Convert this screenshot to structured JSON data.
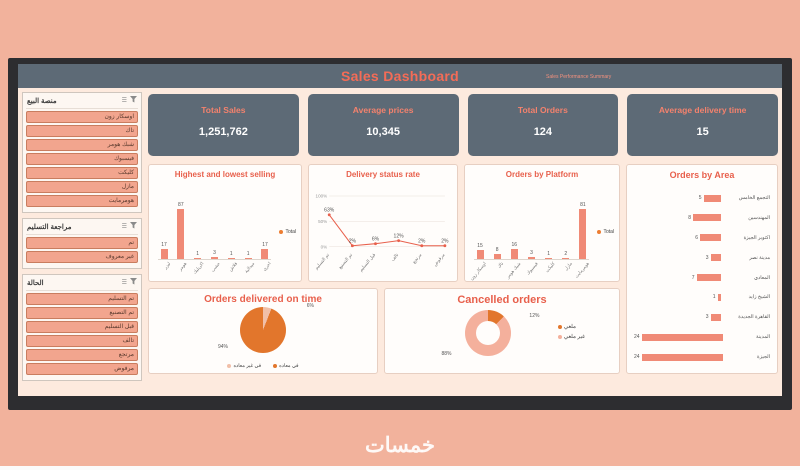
{
  "window": {
    "watermark": "خمسات"
  },
  "header": {
    "title": "Sales Dashboard",
    "subtitle": "Sales Performance Summary"
  },
  "slicers": [
    {
      "title": "منصة البيع",
      "icons": [
        "multi-select-icon",
        "clear-filter-icon"
      ],
      "items": [
        "اوسكار زون",
        "تاك",
        "شبك هومر",
        "فيسبوك",
        "كليكت",
        "مازل",
        "هومرمايت"
      ]
    },
    {
      "title": "مراجعة التسليم",
      "icons": [
        "multi-select-icon",
        "clear-filter-icon"
      ],
      "items": [
        "تم",
        "غير معروف"
      ]
    },
    {
      "title": "الحالة",
      "icons": [
        "multi-select-icon",
        "clear-filter-icon"
      ],
      "items": [
        "تم التسليم",
        "تم التصنيع",
        "قبل التسليم",
        "تالف",
        "مرتجع",
        "مرفوض"
      ]
    }
  ],
  "kpis": [
    {
      "label": "Total Sales",
      "value": "1,251,762"
    },
    {
      "label": "Average prices",
      "value": "10,345"
    },
    {
      "label": "Total Orders",
      "value": "124"
    },
    {
      "label": "Average delivery time",
      "value": "15"
    }
  ],
  "chart_data": [
    {
      "type": "bar",
      "title": "Highest and lowest selling",
      "categories": [
        "ليزر",
        "هومر",
        "اكريليك",
        "خشب",
        "فلاش",
        "ميدالية",
        "اخرى"
      ],
      "values": [
        17,
        87,
        1,
        3,
        1,
        1,
        17
      ],
      "ylim": [
        0,
        90
      ],
      "legend": [
        "Total"
      ],
      "legend_position": "right"
    },
    {
      "type": "line",
      "title": "Delivery status rate",
      "categories": [
        "تم التسليم",
        "تم التصنيع",
        "قبل التسليم",
        "تالف",
        "مرتجع",
        "مرفوض"
      ],
      "values": [
        63,
        2,
        6,
        12,
        2,
        2
      ],
      "labels": [
        "63%",
        "2%",
        "6%",
        "12%",
        "2%",
        "2%"
      ],
      "yticks": [
        "100%",
        "50%",
        "0%"
      ],
      "ylim": [
        0,
        100
      ],
      "grid": true
    },
    {
      "type": "bar",
      "title": "Orders by Platform",
      "categories": [
        "اوسكار زون",
        "تاك",
        "شبك هومر",
        "فيسبوك",
        "كليكت",
        "مازل",
        "هومرمايت"
      ],
      "values": [
        15,
        8,
        16,
        3,
        1,
        2,
        81
      ],
      "ylim": [
        0,
        85
      ],
      "legend": [
        "Total"
      ],
      "legend_position": "right"
    },
    {
      "type": "hbar",
      "title": "Orders by Area",
      "categories": [
        "التجمع الخامس",
        "المهندسين",
        "اكتوبر الجيزة",
        "مدينة نصر",
        "المعادي",
        "الشيخ زايد",
        "القاهرة الجديدة",
        "المدينة",
        "الجيزة"
      ],
      "values": [
        5,
        8,
        6,
        3,
        7,
        1,
        3,
        24,
        24
      ],
      "xlim": [
        0,
        24
      ]
    },
    {
      "type": "pie",
      "title": "Orders delivered on time",
      "labels": [
        "في غير معاده",
        "في معاده"
      ],
      "values": [
        6,
        94
      ],
      "value_labels": [
        "6%",
        "94%"
      ],
      "slice_colors": [
        "#f1bfa8",
        "#e2762c"
      ],
      "legend_position": "bottom"
    },
    {
      "type": "donut",
      "title": "Cancelled orders",
      "labels": [
        "ملغي",
        "غير ملغي"
      ],
      "values": [
        12,
        88
      ],
      "value_labels": [
        "12%",
        "88%"
      ],
      "slice_colors": [
        "#e2762c",
        "#f4b09c"
      ],
      "legend_position": "right"
    }
  ],
  "colors": {
    "accent": "#e8604c",
    "bar": "#f08a76",
    "slate": "#5d6a76",
    "legend_marker": "#ed7d31",
    "dashboard_bg": "#fdeade",
    "page_bg": "#f2b29c"
  }
}
